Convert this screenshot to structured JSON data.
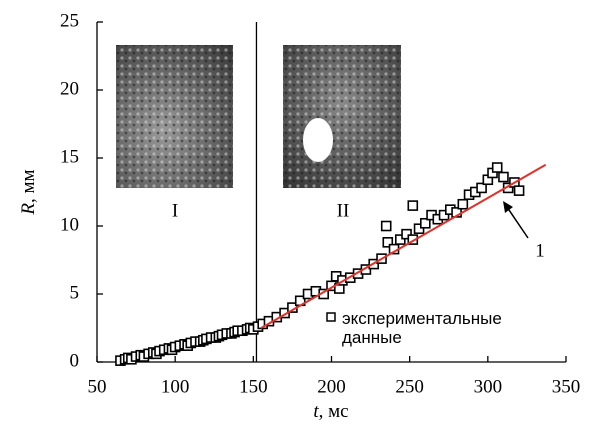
{
  "chart_data": {
    "type": "scatter",
    "ylabel_symbol": "R",
    "ylabel_unit": ", мм",
    "xlabel_symbol": "t",
    "xlabel_unit": ", мс",
    "xlim": [
      50,
      350
    ],
    "ylim": [
      0,
      25
    ],
    "xticks": [
      50,
      100,
      150,
      200,
      250,
      300,
      350
    ],
    "yticks": [
      0,
      5,
      10,
      15,
      20,
      25
    ],
    "vline_x": 152,
    "inset_labels": [
      "I",
      "II"
    ],
    "annotation": "1",
    "series": [
      {
        "name": "экспериментальные данные",
        "color": "#000000",
        "x": [
          65,
          68,
          70,
          72,
          75,
          78,
          80,
          83,
          86,
          88,
          90,
          93,
          96,
          98,
          100,
          103,
          106,
          108,
          110,
          113,
          116,
          118,
          120,
          123,
          126,
          128,
          130,
          133,
          136,
          138,
          140,
          143,
          146,
          148,
          150,
          153,
          156,
          160,
          165,
          170,
          175,
          180,
          185,
          190,
          195,
          200,
          203,
          205,
          207,
          212,
          217,
          222,
          227,
          232,
          235,
          236,
          240,
          244,
          248,
          252,
          252,
          256,
          260,
          264,
          268,
          272,
          276,
          280,
          284,
          288,
          292,
          296,
          300,
          303,
          306,
          310,
          313,
          317,
          320
        ],
        "y": [
          0.1,
          0.2,
          0.3,
          0.2,
          0.4,
          0.5,
          0.4,
          0.6,
          0.7,
          0.6,
          0.8,
          0.9,
          1.0,
          0.9,
          1.1,
          1.2,
          1.3,
          1.2,
          1.4,
          1.5,
          1.5,
          1.6,
          1.7,
          1.8,
          1.8,
          1.9,
          2.0,
          2.1,
          2.1,
          2.2,
          2.3,
          2.3,
          2.4,
          2.5,
          2.4,
          2.6,
          2.8,
          3.0,
          3.3,
          3.6,
          4.0,
          4.5,
          5.0,
          5.2,
          5.0,
          5.6,
          6.3,
          5.4,
          6.0,
          6.2,
          6.5,
          6.8,
          7.2,
          7.6,
          10.0,
          8.8,
          8.3,
          9.0,
          9.4,
          9.0,
          11.5,
          9.8,
          10.2,
          10.8,
          10.5,
          10.8,
          11.2,
          11.0,
          11.6,
          12.3,
          12.5,
          12.8,
          13.4,
          13.9,
          14.3,
          13.6,
          12.8,
          13.2,
          12.6
        ]
      }
    ],
    "fit": {
      "color": "#e0322a",
      "x": [
        155,
        337
      ],
      "y": [
        2.5,
        14.5
      ]
    }
  }
}
